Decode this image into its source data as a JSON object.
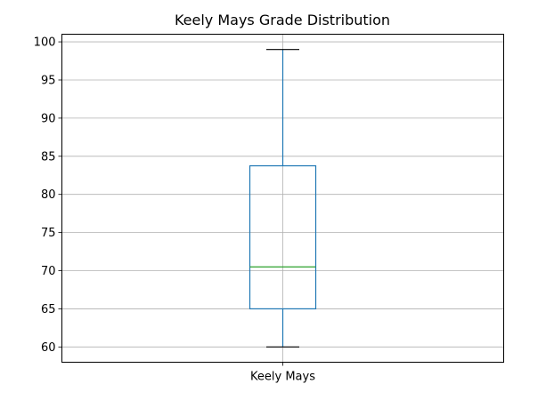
{
  "chart_data": {
    "type": "box",
    "title": "Keely Mays Grade Distribution",
    "xlabel": "",
    "ylabel": "",
    "categories": [
      "Keely Mays"
    ],
    "boxes": [
      {
        "name": "Keely Mays",
        "whisker_low": 60,
        "q1": 65,
        "median": 70.5,
        "q3": 83.75,
        "whisker_high": 99
      }
    ],
    "y_ticks": [
      60,
      65,
      70,
      75,
      80,
      85,
      90,
      95,
      100
    ],
    "ylim": [
      58,
      101
    ],
    "grid": true,
    "colors": {
      "box": "#1f77b4",
      "median": "#2ca02c",
      "whisker_cap": "#000000",
      "grid": "#b0b0b0",
      "frame": "#000000"
    }
  }
}
